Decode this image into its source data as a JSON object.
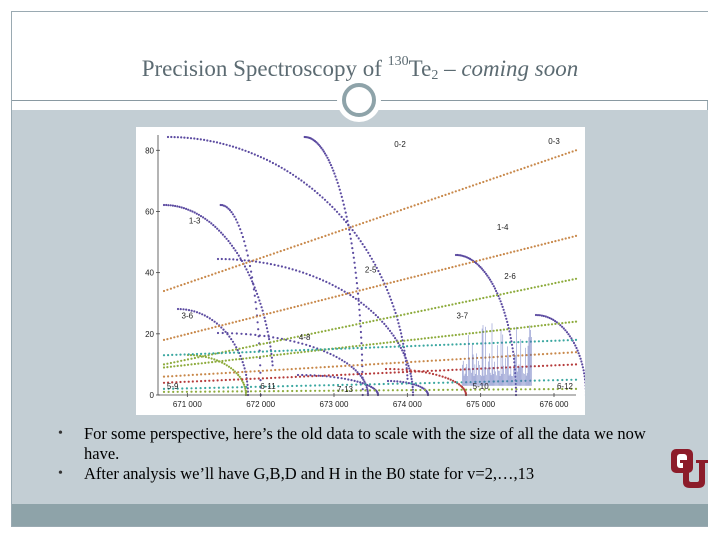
{
  "slide": {
    "title_main": "Precision Spectroscopy of ",
    "title_isotope": "130",
    "title_element": "Te",
    "title_subscript": "2",
    "title_dash": " – ",
    "title_subtitle": "coming soon"
  },
  "bullets": [
    "For some perspective, here’s the old data to scale with the size of all the data we now have.",
    "After analysis we’ll have G,B,D and H in the B0 state for v=2,…,13"
  ],
  "colors": {
    "content_band": "#c3ced4",
    "footer_band": "#8ea3a9",
    "title_text": "#5c6b72",
    "curve_purple": "#5b4aa0",
    "curve_green": "#8dab3c",
    "curve_orange": "#c8884a",
    "curve_red": "#b53a3a",
    "curve_teal": "#3aa7a0",
    "inset_spectrum": "#5866b8",
    "logo_crimson": "#8c1c2a"
  },
  "icons": {
    "slide_ornament": "circle-ornament-icon",
    "logo": "ou-logo-icon"
  },
  "chart_data": {
    "type": "scatter",
    "title": "",
    "xlabel": "",
    "ylabel": "",
    "xlim": [
      670600,
      676300
    ],
    "ylim": [
      0,
      85
    ],
    "x_ticks": [
      671000,
      672000,
      673000,
      674000,
      675000,
      676000
    ],
    "x_tick_labels": [
      "671 000",
      "672 000",
      "673 000",
      "674 000",
      "675 000",
      "676 000"
    ],
    "y_ticks": [
      0,
      20,
      40,
      60,
      80
    ],
    "y_tick_labels": [
      "0",
      "20",
      "40",
      "60",
      "80"
    ],
    "grid": false,
    "legend": "none",
    "band_labels": [
      {
        "text": "0-2",
        "x": 673900,
        "y": 81
      },
      {
        "text": "0-3",
        "x": 676000,
        "y": 82
      },
      {
        "text": "1-3",
        "x": 671100,
        "y": 56
      },
      {
        "text": "1-4",
        "x": 675300,
        "y": 54
      },
      {
        "text": "2-5",
        "x": 673500,
        "y": 40
      },
      {
        "text": "2-6",
        "x": 675400,
        "y": 38
      },
      {
        "text": "3-6",
        "x": 671000,
        "y": 25
      },
      {
        "text": "3-7",
        "x": 674750,
        "y": 25
      },
      {
        "text": "4-8",
        "x": 672600,
        "y": 18
      },
      {
        "text": "5-9",
        "x": 670800,
        "y": 2
      },
      {
        "text": "6-11",
        "x": 672100,
        "y": 2
      },
      {
        "text": "7-13",
        "x": 673150,
        "y": 1
      },
      {
        "text": "5-10",
        "x": 675000,
        "y": 2
      },
      {
        "text": "6-12",
        "x": 676150,
        "y": 2
      }
    ],
    "inset_spectrum": {
      "x_range": [
        674750,
        675700
      ],
      "y_range": [
        3,
        24
      ]
    }
  }
}
